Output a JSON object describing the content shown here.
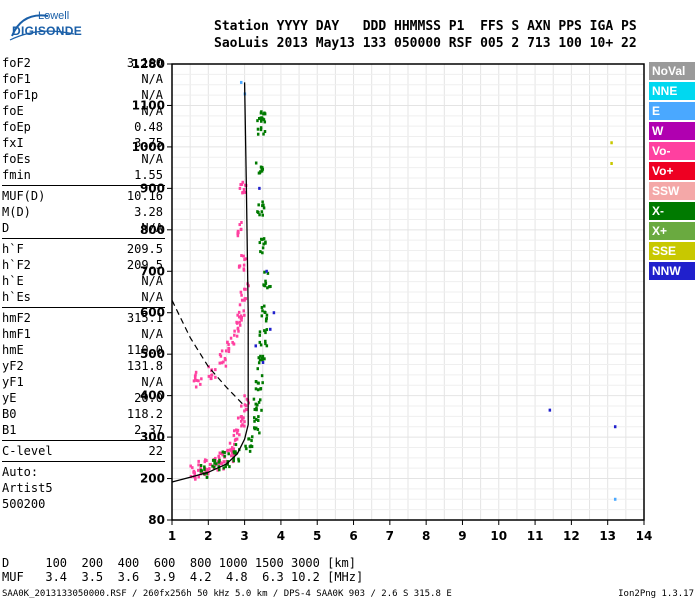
{
  "logo": {
    "line1": "Lowell",
    "line2": "DIGISONDE"
  },
  "header": {
    "line1": "Station YYYY DAY   DDD HHMMSS P1  FFS S AXN PPS IGA PS",
    "line2": "SaoLuis 2013 May13 133 050000 RSF 005 2 713 100 10+ 22"
  },
  "params_group1": [
    {
      "label": "foF2",
      "value": "3.100"
    },
    {
      "label": "foF1",
      "value": "N/A"
    },
    {
      "label": "foF1p",
      "value": "N/A"
    },
    {
      "label": "foE",
      "value": "N/A"
    },
    {
      "label": "foEp",
      "value": "0.48"
    },
    {
      "label": "fxI",
      "value": "3.75"
    },
    {
      "label": "foEs",
      "value": "N/A"
    },
    {
      "label": "fmin",
      "value": "1.55"
    }
  ],
  "params_group2": [
    {
      "label": "MUF(D)",
      "value": "10.16"
    },
    {
      "label": "M(D)",
      "value": "3.28"
    },
    {
      "label": "D",
      "value": "N/A"
    }
  ],
  "params_group3": [
    {
      "label": "h`F",
      "value": "209.5"
    },
    {
      "label": "h`F2",
      "value": "209.5"
    },
    {
      "label": "h`E",
      "value": "N/A"
    },
    {
      "label": "h`Es",
      "value": "N/A"
    }
  ],
  "params_group4": [
    {
      "label": "hmF2",
      "value": "315.1"
    },
    {
      "label": "hmF1",
      "value": "N/A"
    },
    {
      "label": "hmE",
      "value": "110.0"
    },
    {
      "label": "yF2",
      "value": "131.8"
    },
    {
      "label": "yF1",
      "value": "N/A"
    },
    {
      "label": "yE",
      "value": "20.0"
    },
    {
      "label": "B0",
      "value": "118.2"
    },
    {
      "label": "B1",
      "value": "2.37"
    }
  ],
  "params_group5": [
    {
      "label": "C-level",
      "value": "22"
    }
  ],
  "autoscaling": {
    "line1": "Auto:",
    "line2": "Artist5",
    "line3": "500200"
  },
  "legend": [
    {
      "label": "NoVal",
      "color": "#9a9a9a"
    },
    {
      "label": "NNE",
      "color": "#00d8f0"
    },
    {
      "label": "E",
      "color": "#4aa8ff"
    },
    {
      "label": "W",
      "color": "#b000b0"
    },
    {
      "label": "Vo-",
      "color": "#ff40a0"
    },
    {
      "label": "Vo+",
      "color": "#ee0022"
    },
    {
      "label": "SSW",
      "color": "#f4a8a8"
    },
    {
      "label": "X-",
      "color": "#007a00"
    },
    {
      "label": "X+",
      "color": "#6aaa40"
    },
    {
      "label": "SSE",
      "color": "#c8c800"
    },
    {
      "label": "NNW",
      "color": "#2020cc"
    }
  ],
  "footer": {
    "line1": "D     100  200  400  600  800 1000 1500 3000 [km]",
    "line2": "MUF   3.4  3.5  3.6  3.9  4.2  4.8  6.3 10.2 [MHz]"
  },
  "bottom_left": "SAA0K_2013133050000.RSF / 260fx256h 50 kHz 5.0 km / DPS-4 SAA0K 903 / 2.6 S 315.8 E",
  "bottom_right": "Ion2Png 1.3.17",
  "chart_data": {
    "type": "scatter",
    "xlim": [
      1,
      14
    ],
    "ylim": [
      80,
      1280
    ],
    "x_ticks": [
      1,
      2,
      3,
      4,
      5,
      6,
      7,
      8,
      9,
      10,
      11,
      12,
      13,
      14
    ],
    "y_ticks": [
      80,
      200,
      300,
      400,
      500,
      600,
      700,
      800,
      900,
      1000,
      1100,
      1280
    ],
    "x_tick_labels": [
      "1",
      "2",
      "3",
      "4",
      "5",
      "6",
      "7",
      "8",
      "9",
      "10",
      "11",
      "12",
      "13",
      "14"
    ],
    "y_tick_labels": [
      "80",
      "200",
      "300",
      "400",
      "500",
      "600",
      "700",
      "800",
      "900",
      "1000",
      "1100",
      "1280"
    ],
    "grid": true,
    "legend_position": "right",
    "traces": [
      {
        "name": "O-trace (Vo-)",
        "color": "#ff40a0",
        "points": [
          [
            1.6,
            215
          ],
          [
            1.8,
            222
          ],
          [
            2.0,
            228
          ],
          [
            2.2,
            235
          ],
          [
            2.4,
            242
          ],
          [
            2.6,
            255
          ],
          [
            2.7,
            275
          ],
          [
            2.8,
            300
          ],
          [
            2.9,
            330
          ],
          [
            3.0,
            380
          ],
          [
            1.7,
            440
          ],
          [
            2.1,
            460
          ],
          [
            2.4,
            490
          ],
          [
            2.6,
            520
          ],
          [
            2.8,
            560
          ],
          [
            2.9,
            600
          ],
          [
            3.0,
            650
          ],
          [
            2.95,
            720
          ],
          [
            2.9,
            800
          ],
          [
            2.95,
            900
          ]
        ]
      },
      {
        "name": "X-trace (X-)",
        "color": "#007a00",
        "points": [
          [
            1.9,
            220
          ],
          [
            2.2,
            232
          ],
          [
            2.5,
            245
          ],
          [
            2.8,
            262
          ],
          [
            3.1,
            285
          ],
          [
            3.3,
            330
          ],
          [
            3.35,
            380
          ],
          [
            3.4,
            430
          ],
          [
            3.45,
            480
          ],
          [
            3.5,
            540
          ],
          [
            3.55,
            600
          ],
          [
            3.6,
            680
          ],
          [
            3.5,
            760
          ],
          [
            3.45,
            850
          ],
          [
            3.4,
            950
          ],
          [
            3.45,
            1050
          ],
          [
            3.5,
            1080
          ]
        ]
      },
      {
        "name": "NNW echoes",
        "color": "#2020cc",
        "points": [
          [
            3.3,
            520
          ],
          [
            3.5,
            480
          ],
          [
            3.7,
            560
          ],
          [
            3.8,
            600
          ],
          [
            3.6,
            700
          ],
          [
            3.4,
            900
          ],
          [
            11.4,
            365
          ],
          [
            13.2,
            325
          ]
        ]
      },
      {
        "name": "SSE echoes",
        "color": "#c8c800",
        "points": [
          [
            13.1,
            1010
          ],
          [
            13.1,
            960
          ]
        ]
      },
      {
        "name": "E echoes",
        "color": "#4aa8ff",
        "points": [
          [
            2.9,
            1200
          ],
          [
            3.0,
            1150
          ],
          [
            13.2,
            140
          ]
        ]
      }
    ],
    "profile_line": [
      [
        1.0,
        190
      ],
      [
        1.5,
        203
      ],
      [
        2.0,
        215
      ],
      [
        2.5,
        235
      ],
      [
        2.8,
        260
      ],
      [
        3.0,
        295
      ],
      [
        3.1,
        330
      ],
      [
        3.1,
        600
      ],
      [
        3.05,
        900
      ],
      [
        3.0,
        1200
      ]
    ],
    "muf_dashed_line": [
      [
        1.0,
        630
      ],
      [
        1.5,
        540
      ],
      [
        2.0,
        470
      ],
      [
        2.5,
        420
      ],
      [
        3.0,
        375
      ]
    ]
  }
}
